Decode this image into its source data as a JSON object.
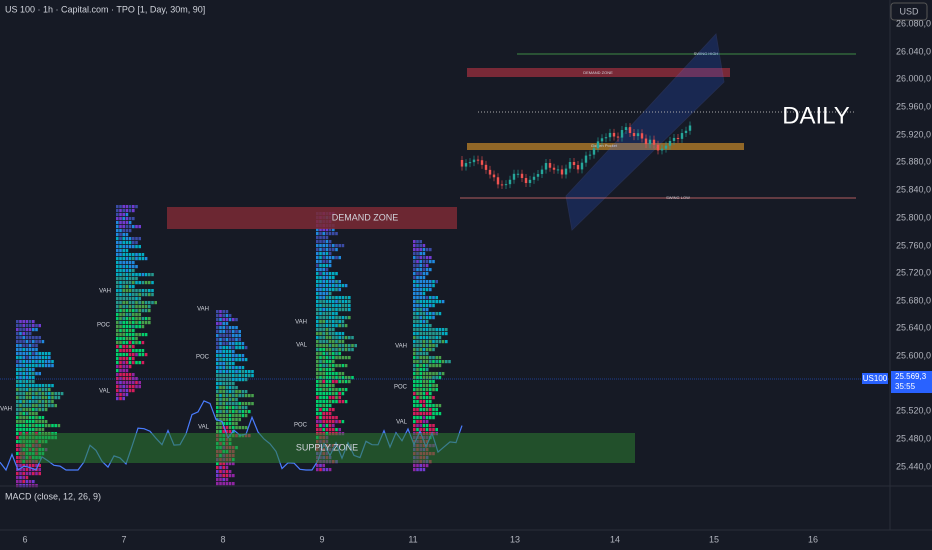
{
  "header": {
    "symbol": "US 100 · 1h · Capital.com · TPO [1, Day, 30m, 90]",
    "currency": "USD"
  },
  "price_axis": {
    "labels": [
      "26.080,0",
      "26.040,0",
      "26.000,0",
      "25.960,0",
      "25.920,0",
      "25.880,0",
      "25.840,0",
      "25.800,0",
      "25.760,0",
      "25.720,0",
      "25.680,0",
      "25.640,0",
      "25.600,0",
      "25.520,0",
      "25.480,0",
      "25.440,0"
    ],
    "current": {
      "symbol": "US100",
      "price": "25.569,3",
      "countdown": "35:55"
    }
  },
  "time_axis": [
    "6",
    "7",
    "8",
    "9",
    "11",
    "13",
    "14",
    "15",
    "16"
  ],
  "zones": {
    "demand": "DEMAND ZONE",
    "supply": "SUPPLY ZONE"
  },
  "inset": {
    "label": "DAILY",
    "swing_high": "SWING HIGH",
    "demand": "DEMAND ZONE",
    "golden": "Golden Pocket",
    "swing_low": "SWING LOW"
  },
  "profile_markers": [
    "VAH",
    "POC",
    "VAL",
    "VAH",
    "VAH",
    "POC",
    "VAL",
    "VAH",
    "POC",
    "VAL",
    "VAH",
    "POC",
    "VAL"
  ],
  "indicator": "MACD (close, 12, 26, 9)"
}
